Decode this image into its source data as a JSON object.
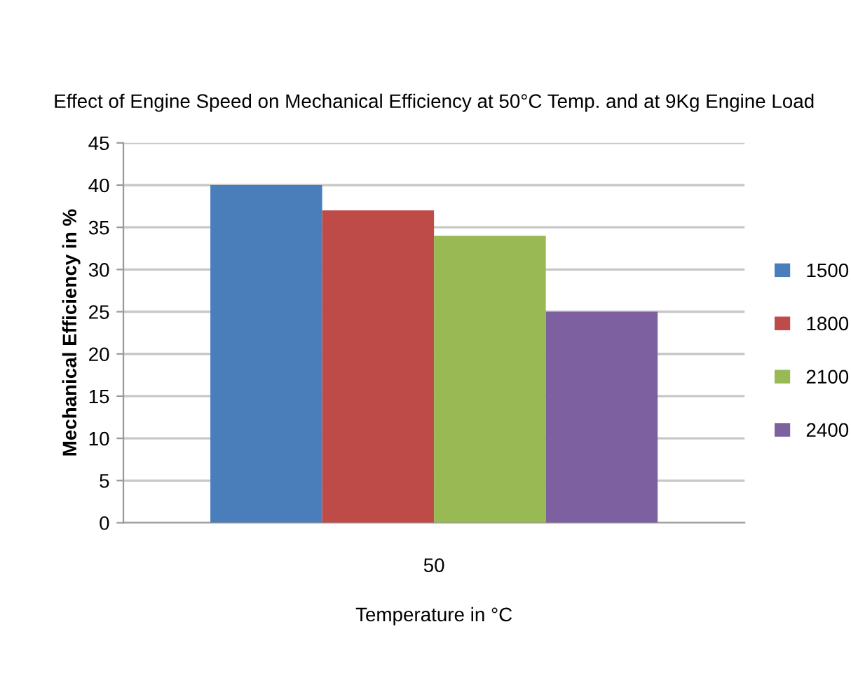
{
  "chart_data": {
    "type": "bar",
    "title": "Effect of Engine Speed on Mechanical Efficiency at 50°C Temp. and at 9Kg Engine Load",
    "xlabel": "Temperature in °C",
    "ylabel": "Mechanical Efficiency in %",
    "categories": [
      "50"
    ],
    "series": [
      {
        "name": "1500",
        "color": "#4a7ebb",
        "values": [
          40
        ]
      },
      {
        "name": "1800",
        "color": "#be4b48",
        "values": [
          37
        ]
      },
      {
        "name": "2100",
        "color": "#98b954",
        "values": [
          34
        ]
      },
      {
        "name": "2400",
        "color": "#7d60a0",
        "values": [
          25
        ]
      }
    ],
    "ylim": [
      0,
      45
    ],
    "yticks": [
      0,
      5,
      10,
      15,
      20,
      25,
      30,
      35,
      40,
      45
    ],
    "grid": "y",
    "legend": "right"
  }
}
